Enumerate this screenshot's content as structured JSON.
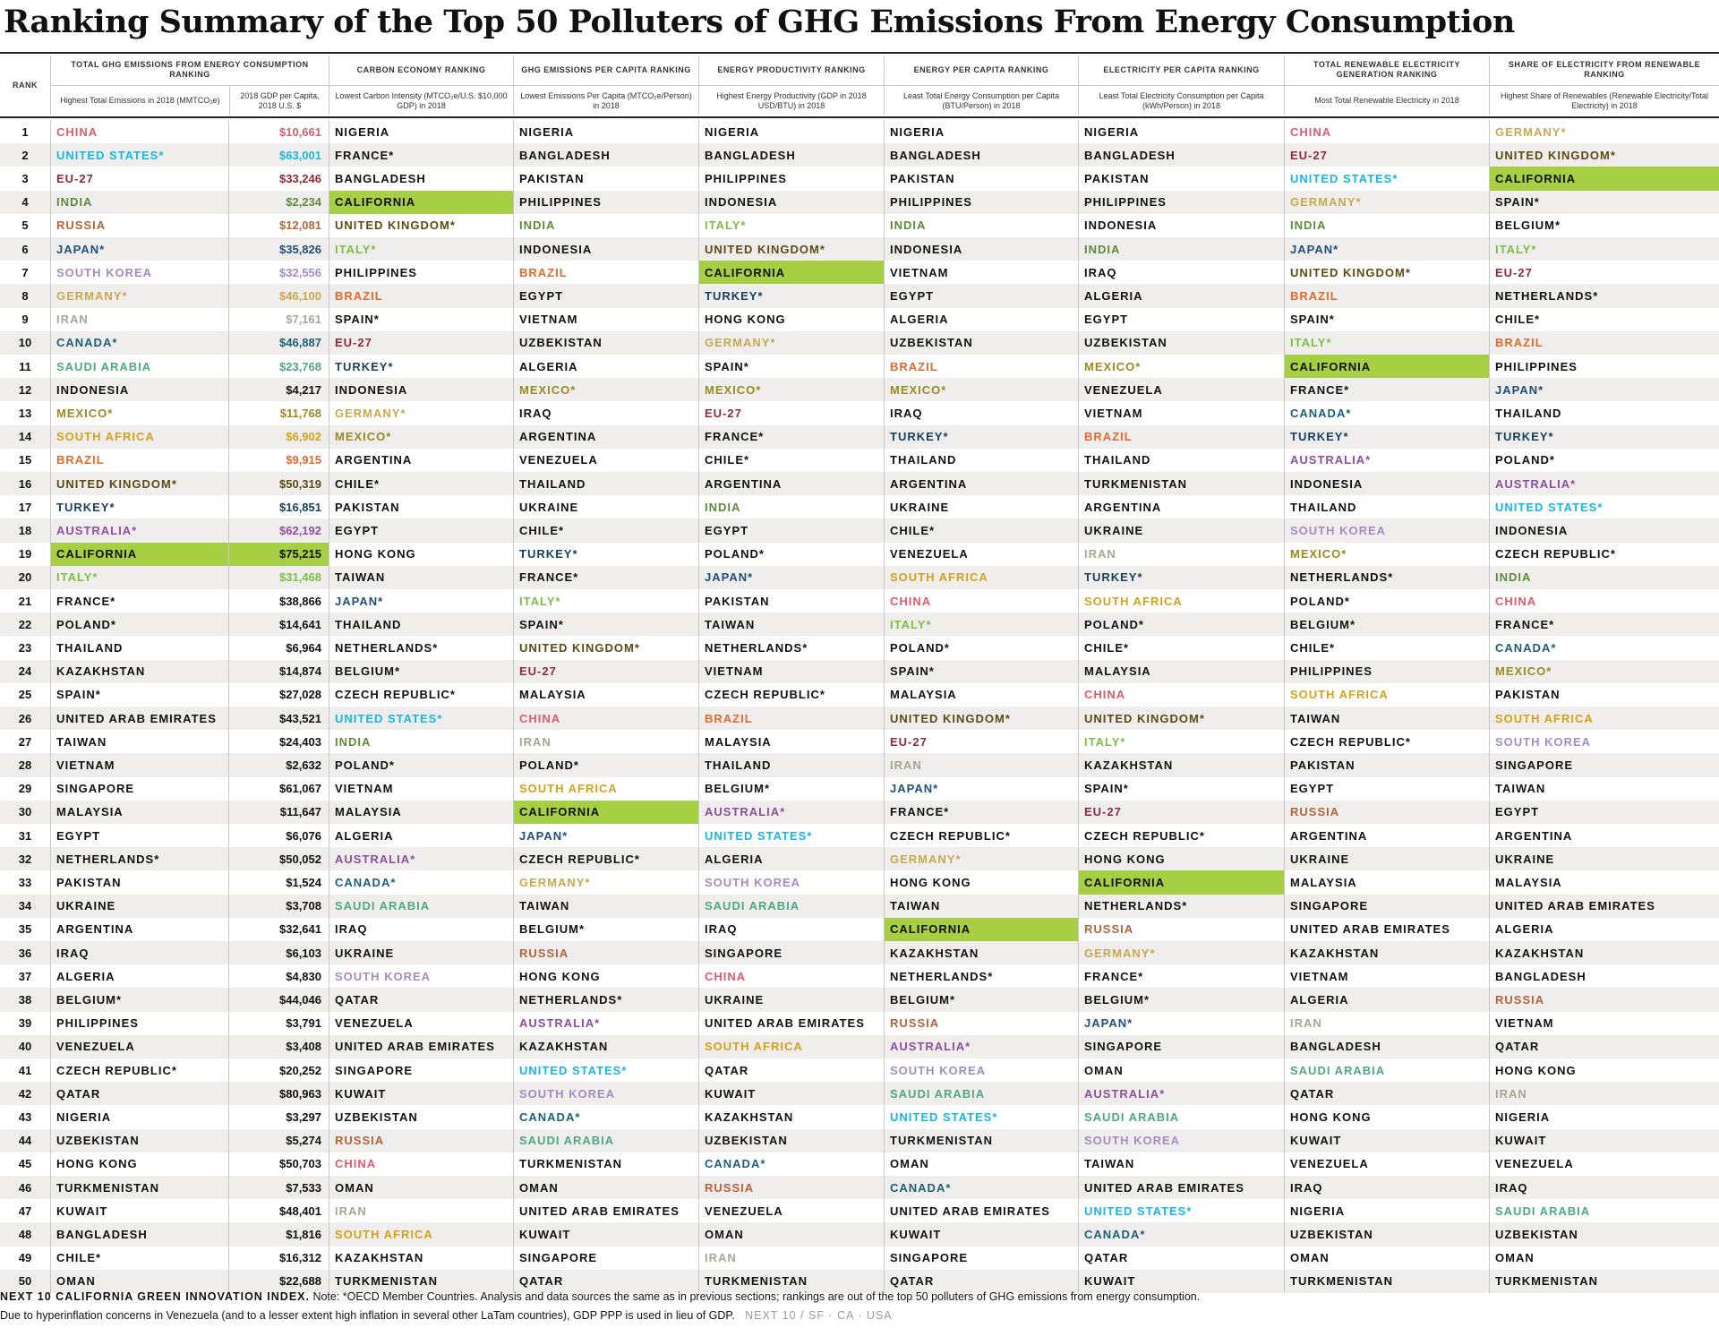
{
  "title": "Ranking Summary of the Top 50 Polluters of GHG Emissions From Energy Consumption",
  "colors": {
    "CHINA": "#e05a6c",
    "UNITED STATES*": "#19b6e0",
    "EU-27": "#8d2b3c",
    "INDIA": "#5d8a3a",
    "RUSSIA": "#b5633a",
    "JAPAN*": "#1f4f7a",
    "SOUTH KOREA": "#a58bc4",
    "GERMANY*": "#c9a94e",
    "IRAN": "#a8a593",
    "CANADA*": "#1b5f78",
    "SAUDI ARABIA": "#4ea883",
    "MEXICO*": "#9a8a1f",
    "SOUTH AFRICA": "#d4a119",
    "BRAZIL": "#e06a2c",
    "UNITED KINGDOM*": "#5c4a12",
    "TURKEY*": "#17405f",
    "AUSTRALIA*": "#8e4ea0",
    "ITALY*": "#7cbf45",
    "CALIFORNIA": "#111111",
    "default": "#111111",
    "highlight": "#a6cf43"
  },
  "headers": {
    "rank": "RANK",
    "groups": [
      {
        "top": "TOTAL GHG EMISSIONS FROM ENERGY CONSUMPTION RANKING",
        "subs": [
          "Highest Total Emissions in 2018 (MMTCO₂e)",
          "2018 GDP per Capita, 2018 U.S. $"
        ]
      },
      {
        "top": "CARBON ECONOMY RANKING",
        "subs": [
          "Lowest Carbon Intensity (MTCO₂e/U.S. $10,000 GDP) in 2018"
        ]
      },
      {
        "top": "GHG EMISSIONS PER CAPITA RANKING",
        "subs": [
          "Lowest Emissions Per Capita (MTCO₂e/Person) in 2018"
        ]
      },
      {
        "top": "ENERGY PRODUCTIVITY RANKING",
        "subs": [
          "Highest Energy Productivity (GDP in 2018 USD/BTU) in 2018"
        ]
      },
      {
        "top": "ENERGY PER CAPITA RANKING",
        "subs": [
          "Least Total Energy Consumption per Capita (BTU/Person) in 2018"
        ]
      },
      {
        "top": "ELECTRICITY PER CAPITA RANKING",
        "subs": [
          "Least Total Electricity Consumption per Capita (kWh/Person) in 2018"
        ]
      },
      {
        "top": "TOTAL RENEWABLE ELECTRICITY GENERATION RANKING",
        "subs": [
          "Most Total Renewable Electricity in 2018"
        ]
      },
      {
        "top": "SHARE OF ELECTRICITY FROM RENEWABLE RANKING",
        "subs": [
          "Highest Share of Renewables (Renewable Electricity/Total Electricity) in 2018"
        ]
      }
    ]
  },
  "rows": [
    {
      "rank": "1",
      "cells": [
        "CHINA",
        "$10,661",
        "NIGERIA",
        "NIGERIA",
        "NIGERIA",
        "NIGERIA",
        "NIGERIA",
        "CHINA",
        "GERMANY*"
      ]
    },
    {
      "rank": "2",
      "cells": [
        "UNITED STATES*",
        "$63,001",
        "FRANCE*",
        "BANGLADESH",
        "BANGLADESH",
        "BANGLADESH",
        "BANGLADESH",
        "EU-27",
        "UNITED KINGDOM*"
      ]
    },
    {
      "rank": "3",
      "cells": [
        "EU-27",
        "$33,246",
        "BANGLADESH",
        "PAKISTAN",
        "PHILIPPINES",
        "PAKISTAN",
        "PAKISTAN",
        "UNITED STATES*",
        "CALIFORNIA"
      ]
    },
    {
      "rank": "4",
      "cells": [
        "INDIA",
        "$2,234",
        "CALIFORNIA",
        "PHILIPPINES",
        "INDONESIA",
        "PHILIPPINES",
        "PHILIPPINES",
        "GERMANY*",
        "SPAIN*"
      ]
    },
    {
      "rank": "5",
      "cells": [
        "RUSSIA",
        "$12,081",
        "UNITED KINGDOM*",
        "INDIA",
        "ITALY*",
        "INDIA",
        "INDONESIA",
        "INDIA",
        "BELGIUM*"
      ]
    },
    {
      "rank": "6",
      "cells": [
        "JAPAN*",
        "$35,826",
        "ITALY*",
        "INDONESIA",
        "UNITED KINGDOM*",
        "INDONESIA",
        "INDIA",
        "JAPAN*",
        "ITALY*"
      ]
    },
    {
      "rank": "7",
      "cells": [
        "SOUTH KOREA",
        "$32,556",
        "PHILIPPINES",
        "BRAZIL",
        "CALIFORNIA",
        "VIETNAM",
        "IRAQ",
        "UNITED KINGDOM*",
        "EU-27"
      ]
    },
    {
      "rank": "8",
      "cells": [
        "GERMANY*",
        "$46,100",
        "BRAZIL",
        "EGYPT",
        "TURKEY*",
        "EGYPT",
        "ALGERIA",
        "BRAZIL",
        "NETHERLANDS*"
      ]
    },
    {
      "rank": "9",
      "cells": [
        "IRAN",
        "$7,161",
        "SPAIN*",
        "VIETNAM",
        "HONG KONG",
        "ALGERIA",
        "EGYPT",
        "SPAIN*",
        "CHILE*"
      ]
    },
    {
      "rank": "10",
      "cells": [
        "CANADA*",
        "$46,887",
        "EU-27",
        "UZBEKISTAN",
        "GERMANY*",
        "UZBEKISTAN",
        "UZBEKISTAN",
        "ITALY*",
        "BRAZIL"
      ]
    },
    {
      "rank": "11",
      "cells": [
        "SAUDI ARABIA",
        "$23,768",
        "TURKEY*",
        "ALGERIA",
        "SPAIN*",
        "BRAZIL",
        "MEXICO*",
        "CALIFORNIA",
        "PHILIPPINES"
      ]
    },
    {
      "rank": "12",
      "cells": [
        "INDONESIA",
        "$4,217",
        "INDONESIA",
        "MEXICO*",
        "MEXICO*",
        "MEXICO*",
        "VENEZUELA",
        "FRANCE*",
        "JAPAN*"
      ]
    },
    {
      "rank": "13",
      "cells": [
        "MEXICO*",
        "$11,768",
        "GERMANY*",
        "IRAQ",
        "EU-27",
        "IRAQ",
        "VIETNAM",
        "CANADA*",
        "THAILAND"
      ]
    },
    {
      "rank": "14",
      "cells": [
        "SOUTH AFRICA",
        "$6,902",
        "MEXICO*",
        "ARGENTINA",
        "FRANCE*",
        "TURKEY*",
        "BRAZIL",
        "TURKEY*",
        "TURKEY*"
      ]
    },
    {
      "rank": "15",
      "cells": [
        "BRAZIL",
        "$9,915",
        "ARGENTINA",
        "VENEZUELA",
        "CHILE*",
        "THAILAND",
        "THAILAND",
        "AUSTRALIA*",
        "POLAND*"
      ]
    },
    {
      "rank": "16",
      "cells": [
        "UNITED KINGDOM*",
        "$50,319",
        "CHILE*",
        "THAILAND",
        "ARGENTINA",
        "ARGENTINA",
        "TURKMENISTAN",
        "INDONESIA",
        "AUSTRALIA*"
      ]
    },
    {
      "rank": "17",
      "cells": [
        "TURKEY*",
        "$16,851",
        "PAKISTAN",
        "UKRAINE",
        "INDIA",
        "UKRAINE",
        "ARGENTINA",
        "THAILAND",
        "UNITED STATES*"
      ]
    },
    {
      "rank": "18",
      "cells": [
        "AUSTRALIA*",
        "$62,192",
        "EGYPT",
        "CHILE*",
        "EGYPT",
        "CHILE*",
        "UKRAINE",
        "SOUTH KOREA",
        "INDONESIA"
      ]
    },
    {
      "rank": "19",
      "cells": [
        "CALIFORNIA",
        "$75,215",
        "HONG KONG",
        "TURKEY*",
        "POLAND*",
        "VENEZUELA",
        "IRAN",
        "MEXICO*",
        "CZECH REPUBLIC*"
      ]
    },
    {
      "rank": "20",
      "cells": [
        "ITALY*",
        "$31,468",
        "TAIWAN",
        "FRANCE*",
        "JAPAN*",
        "SOUTH AFRICA",
        "TURKEY*",
        "NETHERLANDS*",
        "INDIA"
      ]
    },
    {
      "rank": "21",
      "cells": [
        "FRANCE*",
        "$38,866",
        "JAPAN*",
        "ITALY*",
        "PAKISTAN",
        "CHINA",
        "SOUTH AFRICA",
        "POLAND*",
        "CHINA"
      ]
    },
    {
      "rank": "22",
      "cells": [
        "POLAND*",
        "$14,641",
        "THAILAND",
        "SPAIN*",
        "TAIWAN",
        "ITALY*",
        "POLAND*",
        "BELGIUM*",
        "FRANCE*"
      ]
    },
    {
      "rank": "23",
      "cells": [
        "THAILAND",
        "$6,964",
        "NETHERLANDS*",
        "UNITED KINGDOM*",
        "NETHERLANDS*",
        "POLAND*",
        "CHILE*",
        "CHILE*",
        "CANADA*"
      ]
    },
    {
      "rank": "24",
      "cells": [
        "KAZAKHSTAN",
        "$14,874",
        "BELGIUM*",
        "EU-27",
        "VIETNAM",
        "SPAIN*",
        "MALAYSIA",
        "PHILIPPINES",
        "MEXICO*"
      ]
    },
    {
      "rank": "25",
      "cells": [
        "SPAIN*",
        "$27,028",
        "CZECH REPUBLIC*",
        "MALAYSIA",
        "CZECH REPUBLIC*",
        "MALAYSIA",
        "CHINA",
        "SOUTH AFRICA",
        "PAKISTAN"
      ]
    },
    {
      "rank": "26",
      "cells": [
        "UNITED ARAB EMIRATES",
        "$43,521",
        "UNITED STATES*",
        "CHINA",
        "BRAZIL",
        "UNITED KINGDOM*",
        "UNITED KINGDOM*",
        "TAIWAN",
        "SOUTH AFRICA"
      ]
    },
    {
      "rank": "27",
      "cells": [
        "TAIWAN",
        "$24,403",
        "INDIA",
        "IRAN",
        "MALAYSIA",
        "EU-27",
        "ITALY*",
        "CZECH REPUBLIC*",
        "SOUTH KOREA"
      ]
    },
    {
      "rank": "28",
      "cells": [
        "VIETNAM",
        "$2,632",
        "POLAND*",
        "POLAND*",
        "THAILAND",
        "IRAN",
        "KAZAKHSTAN",
        "PAKISTAN",
        "SINGAPORE"
      ]
    },
    {
      "rank": "29",
      "cells": [
        "SINGAPORE",
        "$61,067",
        "VIETNAM",
        "SOUTH AFRICA",
        "BELGIUM*",
        "JAPAN*",
        "SPAIN*",
        "EGYPT",
        "TAIWAN"
      ]
    },
    {
      "rank": "30",
      "cells": [
        "MALAYSIA",
        "$11,647",
        "MALAYSIA",
        "CALIFORNIA",
        "AUSTRALIA*",
        "FRANCE*",
        "EU-27",
        "RUSSIA",
        "EGYPT"
      ]
    },
    {
      "rank": "31",
      "cells": [
        "EGYPT",
        "$6,076",
        "ALGERIA",
        "JAPAN*",
        "UNITED STATES*",
        "CZECH REPUBLIC*",
        "CZECH REPUBLIC*",
        "ARGENTINA",
        "ARGENTINA"
      ]
    },
    {
      "rank": "32",
      "cells": [
        "NETHERLANDS*",
        "$50,052",
        "AUSTRALIA*",
        "CZECH REPUBLIC*",
        "ALGERIA",
        "GERMANY*",
        "HONG KONG",
        "UKRAINE",
        "UKRAINE"
      ]
    },
    {
      "rank": "33",
      "cells": [
        "PAKISTAN",
        "$1,524",
        "CANADA*",
        "GERMANY*",
        "SOUTH KOREA",
        "HONG KONG",
        "CALIFORNIA",
        "MALAYSIA",
        "MALAYSIA"
      ]
    },
    {
      "rank": "34",
      "cells": [
        "UKRAINE",
        "$3,708",
        "SAUDI ARABIA",
        "TAIWAN",
        "SAUDI ARABIA",
        "TAIWAN",
        "NETHERLANDS*",
        "SINGAPORE",
        "UNITED ARAB EMIRATES"
      ]
    },
    {
      "rank": "35",
      "cells": [
        "ARGENTINA",
        "$32,641",
        "IRAQ",
        "BELGIUM*",
        "IRAQ",
        "CALIFORNIA",
        "RUSSIA",
        "UNITED ARAB EMIRATES",
        "ALGERIA"
      ]
    },
    {
      "rank": "36",
      "cells": [
        "IRAQ",
        "$6,103",
        "UKRAINE",
        "RUSSIA",
        "SINGAPORE",
        "KAZAKHSTAN",
        "GERMANY*",
        "KAZAKHSTAN",
        "KAZAKHSTAN"
      ]
    },
    {
      "rank": "37",
      "cells": [
        "ALGERIA",
        "$4,830",
        "SOUTH KOREA",
        "HONG KONG",
        "CHINA",
        "NETHERLANDS*",
        "FRANCE*",
        "VIETNAM",
        "BANGLADESH"
      ]
    },
    {
      "rank": "38",
      "cells": [
        "BELGIUM*",
        "$44,046",
        "QATAR",
        "NETHERLANDS*",
        "UKRAINE",
        "BELGIUM*",
        "BELGIUM*",
        "ALGERIA",
        "RUSSIA"
      ]
    },
    {
      "rank": "39",
      "cells": [
        "PHILIPPINES",
        "$3,791",
        "VENEZUELA",
        "AUSTRALIA*",
        "UNITED ARAB EMIRATES",
        "RUSSIA",
        "JAPAN*",
        "IRAN",
        "VIETNAM"
      ]
    },
    {
      "rank": "40",
      "cells": [
        "VENEZUELA",
        "$3,408",
        "UNITED ARAB EMIRATES",
        "KAZAKHSTAN",
        "SOUTH AFRICA",
        "AUSTRALIA*",
        "SINGAPORE",
        "BANGLADESH",
        "QATAR"
      ]
    },
    {
      "rank": "41",
      "cells": [
        "CZECH REPUBLIC*",
        "$20,252",
        "SINGAPORE",
        "UNITED STATES*",
        "QATAR",
        "SOUTH KOREA",
        "OMAN",
        "SAUDI ARABIA",
        "HONG KONG"
      ]
    },
    {
      "rank": "42",
      "cells": [
        "QATAR",
        "$80,963",
        "KUWAIT",
        "SOUTH KOREA",
        "KUWAIT",
        "SAUDI ARABIA",
        "AUSTRALIA*",
        "QATAR",
        "IRAN"
      ]
    },
    {
      "rank": "43",
      "cells": [
        "NIGERIA",
        "$3,297",
        "UZBEKISTAN",
        "CANADA*",
        "KAZAKHSTAN",
        "UNITED STATES*",
        "SAUDI ARABIA",
        "HONG KONG",
        "NIGERIA"
      ]
    },
    {
      "rank": "44",
      "cells": [
        "UZBEKISTAN",
        "$5,274",
        "RUSSIA",
        "SAUDI ARABIA",
        "UZBEKISTAN",
        "TURKMENISTAN",
        "SOUTH KOREA",
        "KUWAIT",
        "KUWAIT"
      ]
    },
    {
      "rank": "45",
      "cells": [
        "HONG KONG",
        "$50,703",
        "CHINA",
        "TURKMENISTAN",
        "CANADA*",
        "OMAN",
        "TAIWAN",
        "VENEZUELA",
        "VENEZUELA"
      ]
    },
    {
      "rank": "46",
      "cells": [
        "TURKMENISTAN",
        "$7,533",
        "OMAN",
        "OMAN",
        "RUSSIA",
        "CANADA*",
        "UNITED ARAB EMIRATES",
        "IRAQ",
        "IRAQ"
      ]
    },
    {
      "rank": "47",
      "cells": [
        "KUWAIT",
        "$48,401",
        "IRAN",
        "UNITED ARAB EMIRATES",
        "VENEZUELA",
        "UNITED ARAB EMIRATES",
        "UNITED STATES*",
        "NIGERIA",
        "SAUDI ARABIA"
      ]
    },
    {
      "rank": "48",
      "cells": [
        "BANGLADESH",
        "$1,816",
        "SOUTH AFRICA",
        "KUWAIT",
        "OMAN",
        "KUWAIT",
        "CANADA*",
        "UZBEKISTAN",
        "UZBEKISTAN"
      ]
    },
    {
      "rank": "49",
      "cells": [
        "CHILE*",
        "$16,312",
        "KAZAKHSTAN",
        "SINGAPORE",
        "IRAN",
        "SINGAPORE",
        "QATAR",
        "OMAN",
        "OMAN"
      ]
    },
    {
      "rank": "50",
      "cells": [
        "OMAN",
        "$22,688",
        "TURKMENISTAN",
        "QATAR",
        "TURKMENISTAN",
        "QATAR",
        "KUWAIT",
        "TURKMENISTAN",
        "TURKMENISTAN"
      ]
    }
  ],
  "footer": {
    "brand": "NEXT 10 CALIFORNIA GREEN INNOVATION INDEX.",
    "note": "Note: *OECD Member Countries. Analysis and data sources the same as in previous sections; rankings are out of the top 50 polluters of GHG emissions from energy consumption.",
    "note2": "Due to hyperinflation concerns in Venezuela (and to a lesser extent high inflation in several other LaTam countries), GDP PPP is used in lieu of GDP.",
    "tag": "NEXT 10  /  SF · CA · USA"
  }
}
